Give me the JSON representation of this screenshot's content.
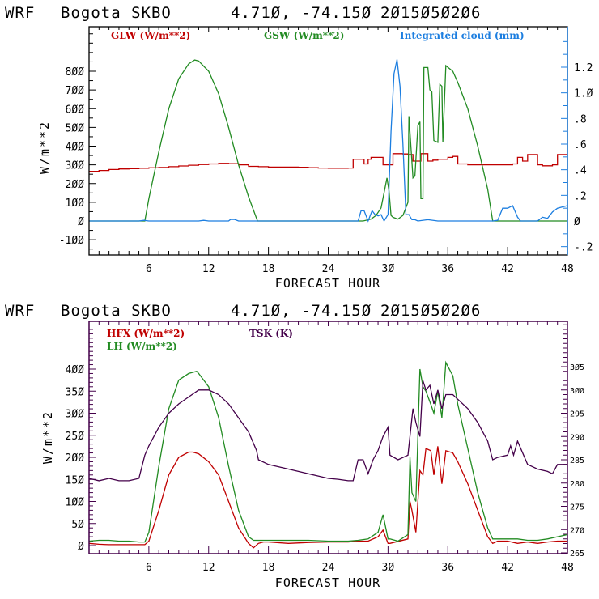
{
  "chart_data": [
    {
      "type": "line",
      "title": "WRF   Bogota SKBO    4.710, -74.150  2015050206",
      "xlabel": "FORECAST HOUR",
      "ylabel": "W/m**2",
      "xlim": [
        0,
        48
      ],
      "ylim": [
        -160,
        1050
      ],
      "xticks": [
        6,
        12,
        18,
        24,
        30,
        36,
        42,
        48
      ],
      "xtick_labels": [
        "6",
        "12",
        "18",
        "24",
        "3Ø",
        "36",
        "42",
        "48"
      ],
      "yticks": [
        -100,
        0,
        100,
        200,
        300,
        400,
        500,
        600,
        700,
        800
      ],
      "ytick_labels": [
        "-1ØØ",
        "Ø",
        "1ØØ",
        "2ØØ",
        "3ØØ",
        "4ØØ",
        "5ØØ",
        "6ØØ",
        "7ØØ",
        "8ØØ"
      ],
      "y2label": "Integrated cloud (mm)",
      "y2lim": [
        -0.2375,
        1.4
      ],
      "y2ticks": [
        -0.2,
        0,
        0.2,
        0.4,
        0.6,
        0.8,
        1.0,
        1.2
      ],
      "y2tick_labels": [
        "-.2",
        "Ø",
        ".2",
        ".4",
        ".6",
        ".8",
        "1.Ø",
        "1.2"
      ],
      "grid": false,
      "legend_position": "top",
      "series": [
        {
          "name": "GLW (W/m**2)",
          "color": "#c00000",
          "axis": "left",
          "step": true,
          "x": [
            0,
            1,
            2,
            3,
            4,
            5,
            6,
            7,
            8,
            9,
            10,
            11,
            12,
            13,
            14,
            15,
            16,
            17,
            18,
            19,
            20,
            21,
            22,
            23,
            24,
            25,
            26,
            26.5,
            27,
            27.6,
            28,
            28.3,
            28.5,
            29,
            29.5,
            30,
            30.5,
            31,
            31.5,
            32,
            32.5,
            33,
            33.3,
            33.5,
            34,
            34.5,
            35,
            35.5,
            36,
            36.5,
            37,
            38,
            39,
            40,
            41,
            42,
            42.5,
            43,
            43.5,
            44,
            44.5,
            45,
            45.5,
            46,
            46.5,
            47,
            48
          ],
          "y": [
            265,
            270,
            275,
            278,
            280,
            282,
            284,
            286,
            290,
            294,
            298,
            302,
            305,
            308,
            306,
            300,
            292,
            290,
            288,
            288,
            288,
            287,
            285,
            283,
            282,
            282,
            283,
            330,
            330,
            305,
            330,
            340,
            340,
            340,
            300,
            300,
            360,
            360,
            358,
            355,
            320,
            320,
            360,
            360,
            320,
            325,
            330,
            330,
            340,
            345,
            305,
            300,
            300,
            300,
            300,
            300,
            305,
            340,
            320,
            355,
            355,
            300,
            295,
            295,
            300,
            355,
            360
          ]
        },
        {
          "name": "GSW (W/m**2)",
          "color": "#228b22",
          "axis": "left",
          "step": false,
          "x": [
            0,
            5.6,
            6,
            7,
            8,
            9,
            10,
            10.6,
            11,
            12,
            13,
            14,
            15,
            16,
            16.9,
            17,
            20,
            25,
            27.5,
            28.3,
            28.8,
            29.3,
            29.9,
            30.1,
            30.3,
            30.5,
            31,
            31.5,
            32,
            32.1,
            32.5,
            32.7,
            33.0,
            33.2,
            33.3,
            33.5,
            33.6,
            34.0,
            34.2,
            34.4,
            34.6,
            35.0,
            35.2,
            35.4,
            35.5,
            35.8,
            36.5,
            37,
            38,
            39,
            40,
            40.5,
            41,
            48
          ],
          "y": [
            0,
            0,
            120,
            370,
            600,
            760,
            840,
            860,
            855,
            800,
            680,
            500,
            300,
            130,
            0,
            0,
            0,
            0,
            0,
            10,
            30,
            70,
            230,
            160,
            30,
            20,
            10,
            30,
            100,
            560,
            230,
            240,
            510,
            530,
            120,
            120,
            820,
            820,
            700,
            690,
            430,
            420,
            730,
            720,
            420,
            830,
            800,
            740,
            600,
            400,
            170,
            0,
            0,
            0
          ]
        },
        {
          "name": "Integrated cloud (mm)",
          "color": "#1c7ee0",
          "axis": "right",
          "step": false,
          "x": [
            0,
            5,
            5.5,
            6,
            10,
            11,
            11.5,
            12,
            14,
            14.2,
            14.6,
            15,
            27,
            27.3,
            27.6,
            28,
            28.4,
            28.7,
            29,
            29.3,
            29.6,
            30.0,
            30.3,
            30.6,
            30.9,
            31.2,
            31.5,
            31.8,
            32.1,
            32.4,
            32.7,
            33,
            34,
            35,
            40.5,
            41,
            41.5,
            42,
            42.5,
            43,
            43.3,
            45,
            45.5,
            46,
            46.5,
            47,
            48
          ],
          "y": [
            0,
            0,
            0.005,
            0,
            0,
            0,
            0.005,
            0,
            0,
            0.012,
            0.012,
            0,
            0,
            0.08,
            0.08,
            0,
            0.08,
            0.05,
            0.04,
            0.05,
            0,
            0.05,
            0.7,
            1.15,
            1.26,
            1.05,
            0.6,
            0.05,
            0.05,
            0.01,
            0.01,
            0,
            0.01,
            0,
            0,
            0.005,
            0.1,
            0.1,
            0.12,
            0.03,
            0,
            0,
            0.03,
            0.02,
            0.07,
            0.1,
            0.12
          ]
        }
      ]
    },
    {
      "type": "line",
      "title": "WRF   Bogota SKBO    4.710, -74.150  2015050206",
      "xlabel": "FORECAST HOUR",
      "ylabel": "W/m**2",
      "xlim": [
        0,
        48
      ],
      "ylim": [
        -15,
        500
      ],
      "xticks": [
        6,
        12,
        18,
        24,
        30,
        36,
        42,
        48
      ],
      "xtick_labels": [
        "6",
        "12",
        "18",
        "24",
        "3Ø",
        "36",
        "42",
        "48"
      ],
      "yticks": [
        0,
        50,
        100,
        150,
        200,
        250,
        300,
        350,
        400
      ],
      "ytick_labels": [
        "Ø",
        "5Ø",
        "1ØØ",
        "15Ø",
        "2ØØ",
        "25Ø",
        "3ØØ",
        "35Ø",
        "4ØØ"
      ],
      "y2label": "TSK (K)",
      "y2lim": [
        265,
        314
      ],
      "y2ticks": [
        265,
        270,
        275,
        280,
        285,
        290,
        295,
        300,
        305
      ],
      "y2tick_labels": [
        "265",
        "27Ø",
        "275",
        "28Ø",
        "285",
        "29Ø",
        "295",
        "3ØØ",
        "3Ø5"
      ],
      "grid": false,
      "legend_position": "top-left",
      "series": [
        {
          "name": "HFX (W/m**2)",
          "color": "#c00000",
          "axis": "left",
          "x": [
            0,
            1,
            2,
            3,
            4,
            5,
            5.6,
            6,
            7,
            8,
            9,
            10,
            10.4,
            11,
            12,
            13,
            14,
            15,
            16,
            16.5,
            17,
            17.5,
            18,
            20,
            22,
            24,
            26,
            27,
            28,
            29,
            29.5,
            30.0,
            30.2,
            32,
            32.2,
            32.4,
            32.8,
            33.2,
            33.5,
            33.8,
            34.3,
            34.6,
            35.0,
            35.4,
            35.8,
            36.5,
            37,
            38,
            39,
            40,
            40.5,
            41,
            42,
            43,
            44,
            45,
            46,
            47,
            48
          ],
          "y": [
            5,
            3,
            2,
            2,
            2,
            2,
            2,
            10,
            80,
            160,
            200,
            212,
            212,
            208,
            190,
            160,
            100,
            40,
            5,
            -5,
            5,
            8,
            8,
            5,
            7,
            8,
            8,
            10,
            10,
            20,
            35,
            5,
            5,
            15,
            100,
            80,
            30,
            170,
            160,
            220,
            215,
            160,
            225,
            140,
            215,
            210,
            190,
            140,
            80,
            20,
            5,
            10,
            10,
            5,
            8,
            5,
            8,
            10,
            10
          ]
        },
        {
          "name": "LH  (W/m**2)",
          "color": "#228b22",
          "axis": "left",
          "x": [
            0,
            1,
            2,
            3,
            4,
            5,
            5.6,
            6,
            7,
            8,
            9,
            10,
            10.8,
            11,
            12,
            13,
            14,
            15,
            16,
            16.5,
            17,
            17.5,
            18,
            20,
            22,
            24,
            26,
            27,
            28,
            29,
            29.5,
            30.0,
            30.2,
            31,
            32,
            32.2,
            32.4,
            32.8,
            33.2,
            33.5,
            33.8,
            34.3,
            34.6,
            35.0,
            35.4,
            35.8,
            36.5,
            37,
            38,
            39,
            40,
            40.5,
            41,
            42,
            43,
            44,
            45,
            46,
            47,
            48
          ],
          "y": [
            10,
            12,
            12,
            10,
            10,
            8,
            8,
            30,
            180,
            310,
            375,
            390,
            395,
            390,
            360,
            290,
            180,
            80,
            20,
            12,
            12,
            12,
            12,
            12,
            12,
            10,
            10,
            12,
            15,
            30,
            70,
            15,
            15,
            10,
            25,
            200,
            120,
            100,
            400,
            360,
            350,
            320,
            300,
            350,
            290,
            415,
            385,
            320,
            220,
            120,
            40,
            15,
            15,
            15,
            15,
            12,
            12,
            15,
            20,
            25
          ]
        },
        {
          "name": "TSK (K)",
          "color": "#44004a",
          "axis": "right",
          "x": [
            0,
            1,
            2,
            3,
            4,
            5,
            5.6,
            6,
            7,
            8,
            9,
            10,
            11,
            11.6,
            12,
            13,
            14,
            15,
            16,
            16.8,
            17,
            18,
            19,
            20,
            21,
            22,
            23,
            24,
            25,
            26,
            26.5,
            27,
            27.5,
            28,
            28.5,
            29,
            29.5,
            30,
            30.2,
            31,
            32,
            32.3,
            32.5,
            32.8,
            33.2,
            33.5,
            33.8,
            34.2,
            34.6,
            35,
            35.4,
            35.8,
            36.5,
            37,
            38,
            39,
            40,
            40.5,
            41,
            42,
            42.3,
            42.6,
            43,
            44,
            45,
            46,
            46.5,
            47,
            48
          ],
          "y": [
            281,
            280.5,
            281,
            280.5,
            280.5,
            281,
            286,
            288,
            292,
            295,
            297,
            298.5,
            300,
            300,
            300,
            299,
            297,
            294,
            291,
            287,
            285,
            284,
            283.5,
            283,
            282.5,
            282,
            281.5,
            281,
            280.8,
            280.5,
            280.5,
            285,
            285,
            282,
            285,
            287,
            290,
            292,
            286,
            285,
            286,
            292,
            296,
            293,
            290,
            302,
            300,
            301,
            297,
            300,
            296,
            299,
            299,
            298,
            296,
            293,
            289,
            285,
            285.5,
            286,
            288,
            286,
            289,
            284,
            283,
            282.5,
            282,
            284,
            284
          ]
        }
      ]
    }
  ],
  "panels": [
    {
      "title_parts": [
        "WRF",
        "Bogota SKBO",
        "4.71Ø, -74.15Ø",
        "2Ø15Ø5Ø2Ø6"
      ],
      "ylabel_text": "W/m**2",
      "xlabel_text": "FORECAST HOUR",
      "legend": [
        {
          "label": "GLW (W/m**2)",
          "color": "#c00000"
        },
        {
          "label": "GSW (W/m**2)",
          "color": "#228b22"
        },
        {
          "label": "Integrated cloud (mm)",
          "color": "#1c7ee0"
        }
      ]
    },
    {
      "title_parts": [
        "WRF",
        "Bogota SKBO",
        "4.71Ø, -74.15Ø",
        "2Ø15Ø5Ø2Ø6"
      ],
      "ylabel_text": "W/m**2",
      "xlabel_text": "FORECAST HOUR",
      "legend": [
        {
          "label": "HFX (W/m**2)",
          "color": "#c00000"
        },
        {
          "label": "LH  (W/m**2)",
          "color": "#228b22"
        },
        {
          "label": "TSK (K)",
          "color": "#44004a"
        }
      ]
    }
  ]
}
